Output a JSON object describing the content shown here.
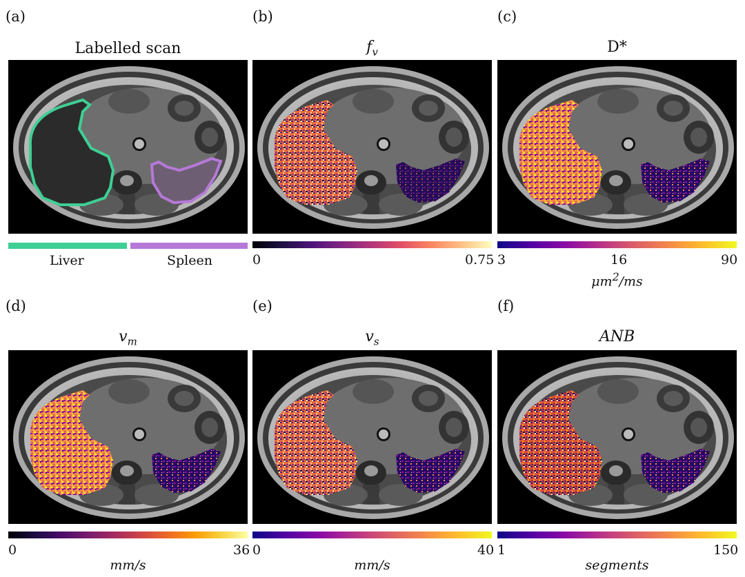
{
  "colors": {
    "liver": "#3ecf95",
    "spleen": "#b779d8"
  },
  "panels": {
    "a": {
      "letter": "(a)",
      "title": "Labelled scan"
    },
    "b": {
      "letter": "(b)",
      "title_main": "f",
      "title_sub": "v",
      "ticks": [
        "0",
        "0.75"
      ]
    },
    "c": {
      "letter": "(c)",
      "title_main": "D*",
      "ticks": [
        "3",
        "16",
        "90"
      ],
      "unit_main": "μm",
      "unit_sup": "2",
      "unit_rest": "/ms"
    },
    "d": {
      "letter": "(d)",
      "title_main": "v",
      "title_sub": "m",
      "ticks": [
        "0",
        "36"
      ],
      "unit": "mm/s"
    },
    "e": {
      "letter": "(e)",
      "title_main": "v",
      "title_sub": "s",
      "ticks": [
        "0",
        "40"
      ],
      "unit": "mm/s"
    },
    "f": {
      "letter": "(f)",
      "title": "ANB",
      "ticks": [
        "1",
        "150"
      ],
      "unit": "segments"
    }
  },
  "legend": {
    "liver": "Liver",
    "spleen": "Spleen"
  }
}
